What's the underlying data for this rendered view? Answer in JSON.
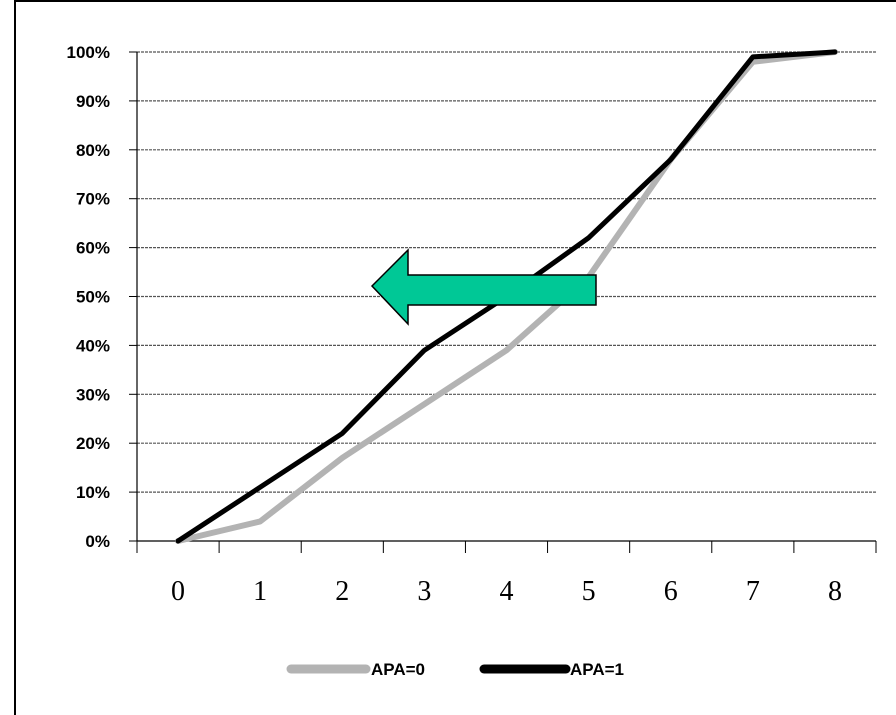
{
  "chart_data": {
    "type": "line",
    "title": "",
    "xlabel": "",
    "ylabel": "",
    "x": [
      0,
      1,
      2,
      3,
      4,
      5,
      6,
      7,
      8
    ],
    "x_tick_labels": [
      "0",
      "1",
      "2",
      "3",
      "4",
      "5",
      "6",
      "7",
      "8"
    ],
    "y_tick_labels": [
      "0%",
      "10%",
      "20%",
      "30%",
      "40%",
      "50%",
      "60%",
      "70%",
      "80%",
      "90%",
      "100%"
    ],
    "ylim": [
      0,
      100
    ],
    "y_unit": "%",
    "grid": "horizontal, dashed",
    "legend_position": "bottom",
    "series": [
      {
        "name": "APA=0",
        "color": "#b3b3b3",
        "values": [
          0,
          4,
          17,
          28,
          39,
          54,
          78,
          98,
          100
        ]
      },
      {
        "name": "APA=1",
        "color": "#000000",
        "values": [
          0,
          11,
          22,
          39,
          50,
          62,
          78,
          99,
          100
        ]
      }
    ],
    "annotations": [
      {
        "type": "arrow",
        "direction": "left",
        "color": "#00c896"
      }
    ]
  }
}
